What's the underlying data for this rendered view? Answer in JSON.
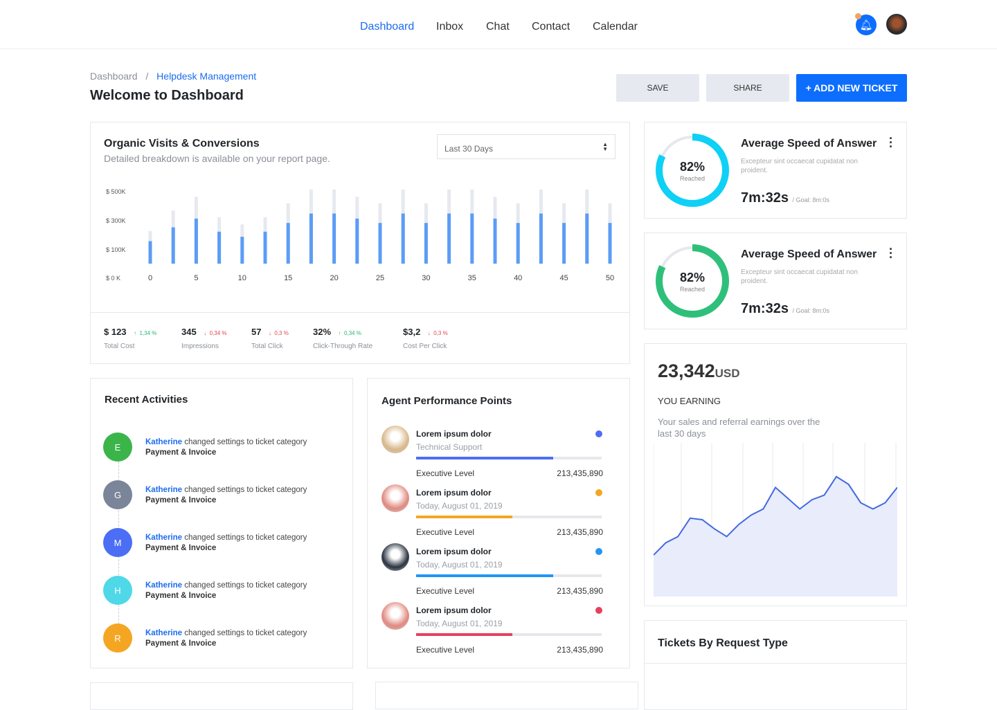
{
  "nav": {
    "items": [
      {
        "label": "Dashboard",
        "active": true
      },
      {
        "label": "Inbox"
      },
      {
        "label": "Chat"
      },
      {
        "label": "Contact"
      },
      {
        "label": "Calendar"
      }
    ],
    "icons": {
      "notification": "bell-icon",
      "avatar": "user-avatar"
    },
    "accent": "#1a6cf0"
  },
  "breadcrumb": {
    "root": "Dashboard",
    "separator": "/",
    "current": "Helpdesk Management"
  },
  "page_title": "Welcome to Dashboard",
  "actions": {
    "save": "SAVE",
    "share": "SHARE",
    "add": "+ ADD NEW TICKET"
  },
  "visits": {
    "title": "Organic Visits & Conversions",
    "subtitle": "Detailed breakdown is available on your report page.",
    "range_select": "Last 30 Days",
    "kpis": [
      {
        "value": "$ 123",
        "change": "1,34 %",
        "dir": "up",
        "label": "Total Cost"
      },
      {
        "value": "345",
        "change": "0,34 %",
        "dir": "down",
        "label": "Impressions"
      },
      {
        "value": "57",
        "change": "0,3 %",
        "dir": "down",
        "label": "Total Click"
      },
      {
        "value": "32%",
        "change": "0,34 %",
        "dir": "up",
        "label": "Click-Through Rate"
      },
      {
        "value": "$3,2",
        "change": "0,3 %",
        "dir": "down",
        "label": "Cost Per Click"
      }
    ]
  },
  "chart_data": [
    {
      "type": "bar",
      "y_tick_labels": [
        "$ 500K",
        "$ 300K",
        "$ 100K",
        "$ 0 K"
      ],
      "x_tick_labels": [
        "0",
        "5",
        "10",
        "15",
        "20",
        "25",
        "30",
        "35",
        "40",
        "45",
        "50"
      ],
      "x": [
        0,
        2.5,
        5,
        7.5,
        10,
        12.5,
        15,
        17.5,
        20,
        22.5,
        25,
        27.5,
        30,
        32.5,
        35,
        37.5,
        40,
        42.5,
        45,
        47.5,
        50
      ],
      "series": [
        {
          "values": [
            155,
            250,
            310,
            220,
            185,
            220,
            280,
            345,
            345,
            310,
            280,
            345,
            280,
            345,
            345,
            310,
            280,
            345,
            280,
            345,
            280
          ],
          "color": "#5b9cf6"
        },
        {
          "values": [
            225,
            365,
            460,
            320,
            270,
            320,
            415,
            510,
            510,
            460,
            415,
            510,
            415,
            510,
            510,
            460,
            415,
            510,
            415,
            510,
            415
          ],
          "color": "#e6e9ef"
        }
      ],
      "ylim": [
        0,
        520
      ]
    },
    {
      "type": "area",
      "values": [
        27,
        35,
        39,
        51,
        50,
        44,
        39,
        47,
        53,
        57,
        71,
        64,
        57,
        63,
        66,
        78,
        73,
        61,
        57,
        61,
        71
      ],
      "ylim": [
        0,
        100
      ],
      "color": "#4169e1",
      "fill": "#e8ecfb",
      "grid": "vertical"
    }
  ],
  "speed_cards": [
    {
      "percent": 82,
      "percent_label": "82%",
      "reached": "Reached",
      "title": "Average Speed of Answer",
      "desc": "Excepteur sint occaecat cupidatat non proident.",
      "time": "7m:32s",
      "goal": "/ Goal: 8m:0s",
      "color": "#0fd0f5"
    },
    {
      "percent": 82,
      "percent_label": "82%",
      "reached": "Reached",
      "title": "Average Speed of Answer",
      "desc": "Excepteur sint occaecat cupidatat non proident.",
      "time": "7m:32s",
      "goal": "/ Goal: 8m:0s",
      "color": "#2ec07a"
    }
  ],
  "earning": {
    "amount": "23,342",
    "currency": "USD",
    "label": "YOU EARNING",
    "desc": "Your sales and referral earnings over the last 30 days"
  },
  "activities": {
    "title": "Recent Activities",
    "items": [
      {
        "initial": "E",
        "color": "#3bb54a",
        "name": "Katherine",
        "text": " changed settings to ticket category",
        "category": "Payment & Invoice"
      },
      {
        "initial": "G",
        "color": "#7a8599",
        "name": "Katherine",
        "text": " changed settings to ticket category",
        "category": "Payment & Invoice"
      },
      {
        "initial": "M",
        "color": "#4c6ef5",
        "name": "Katherine",
        "text": " changed settings to ticket category",
        "category": "Payment & Invoice"
      },
      {
        "initial": "H",
        "color": "#4fd8e8",
        "name": "Katherine",
        "text": " changed settings to ticket category",
        "category": "Payment & Invoice"
      },
      {
        "initial": "R",
        "color": "#f4a623",
        "name": "Katherine",
        "text": " changed settings to ticket category",
        "category": "Payment & Invoice"
      }
    ]
  },
  "agents": {
    "title": "Agent Performance Points",
    "items": [
      {
        "name": "Lorem ipsum dolor",
        "sub": "Technical Support",
        "level": "Executive Level",
        "value": "213,435,890",
        "progress": 0.74,
        "color": "#4c6ef5",
        "avatar": "#d9b88a"
      },
      {
        "name": "Lorem ipsum dolor",
        "sub": "Today, August 01, 2019",
        "level": "Executive Level",
        "value": "213,435,890",
        "progress": 0.52,
        "color": "#f4a623",
        "avatar": "#e08a80"
      },
      {
        "name": "Lorem ipsum dolor",
        "sub": "Today, August 01, 2019",
        "level": "Executive Level",
        "value": "213,435,890",
        "progress": 0.74,
        "color": "#2196f3",
        "avatar": "#2a3340"
      },
      {
        "name": "Lorem ipsum dolor",
        "sub": "Today, August 01, 2019",
        "level": "Executive Level",
        "value": "213,435,890",
        "progress": 0.52,
        "color": "#e5405e",
        "avatar": "#e08a80"
      }
    ]
  },
  "tickets": {
    "title": "Tickets By Request Type"
  }
}
